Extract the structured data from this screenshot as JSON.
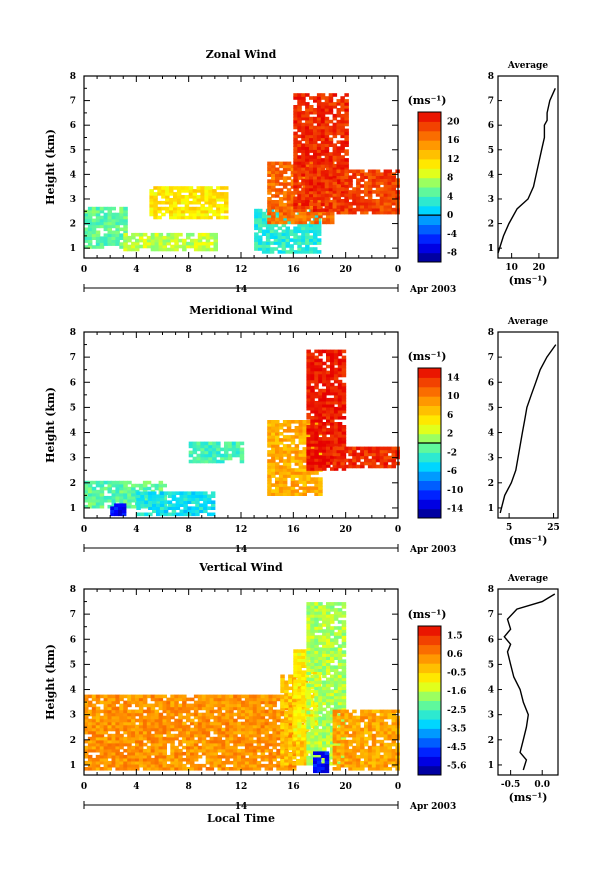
{
  "chart_data": [
    {
      "type": "heatmap",
      "title": "Zonal Wind",
      "ylabel": "Height (km)",
      "xlabel": "",
      "x_ticks": [
        "0",
        "4",
        "8",
        "12",
        "16",
        "20",
        "0"
      ],
      "y_ticks": [
        "1",
        "2",
        "3",
        "4",
        "5",
        "6",
        "7",
        "8"
      ],
      "xlim": [
        0,
        24
      ],
      "ylim": [
        0.6,
        8.0
      ],
      "date_label": "14",
      "month_label": "Apr 2003",
      "colorbar": {
        "unit": "(ms⁻¹)",
        "ticks": [
          "20",
          "16",
          "12",
          "8",
          "4",
          "0",
          "-4",
          "-8"
        ],
        "range": [
          -10,
          22
        ],
        "zero_line": 0
      },
      "regions": [
        {
          "x": [
            0,
            3
          ],
          "y": [
            1.0,
            2.6
          ],
          "value": 5
        },
        {
          "x": [
            3,
            10
          ],
          "y": [
            0.9,
            1.6
          ],
          "value": 8
        },
        {
          "x": [
            5,
            11
          ],
          "y": [
            2.2,
            3.5
          ],
          "value": 11
        },
        {
          "x": [
            13,
            18
          ],
          "y": [
            0.8,
            2.6
          ],
          "value": 3
        },
        {
          "x": [
            14,
            19
          ],
          "y": [
            2.0,
            4.5
          ],
          "value": 17
        },
        {
          "x": [
            16,
            20
          ],
          "y": [
            2.5,
            7.2
          ],
          "value": 20
        },
        {
          "x": [
            19,
            24
          ],
          "y": [
            2.4,
            4.2
          ],
          "value": 19
        }
      ],
      "average_profile": {
        "title": "Average",
        "xlabel": "(ms⁻¹)",
        "x_ticks": [
          "10",
          "20"
        ],
        "xlim": [
          5,
          27
        ],
        "height": [
          0.8,
          1.5,
          2.0,
          2.6,
          3.0,
          3.5,
          4.0,
          4.5,
          5.0,
          5.5,
          6.0,
          6.2,
          6.5,
          7.0,
          7.5
        ],
        "value": [
          5,
          7,
          9,
          12,
          16,
          18,
          19,
          20,
          21,
          22,
          22,
          23,
          23,
          24,
          26
        ]
      }
    },
    {
      "type": "heatmap",
      "title": "Meridional Wind",
      "ylabel": "Height (km)",
      "xlabel": "",
      "x_ticks": [
        "0",
        "4",
        "8",
        "12",
        "16",
        "20",
        "0"
      ],
      "y_ticks": [
        "1",
        "2",
        "3",
        "4",
        "5",
        "6",
        "7",
        "8"
      ],
      "xlim": [
        0,
        24
      ],
      "ylim": [
        0.6,
        8.0
      ],
      "date_label": "14",
      "month_label": "Apr 2003",
      "colorbar": {
        "unit": "(ms⁻¹)",
        "ticks": [
          "14",
          "10",
          "6",
          "2",
          "-2",
          "-6",
          "-10",
          "-14"
        ],
        "range": [
          -16,
          16
        ],
        "zero_line": 0
      },
      "regions": [
        {
          "x": [
            0,
            6
          ],
          "y": [
            1.0,
            2.0
          ],
          "value": -1
        },
        {
          "x": [
            2,
            3
          ],
          "y": [
            0.7,
            1.1
          ],
          "value": -12
        },
        {
          "x": [
            4,
            10
          ],
          "y": [
            0.7,
            1.6
          ],
          "value": -4
        },
        {
          "x": [
            8,
            12
          ],
          "y": [
            2.8,
            3.6
          ],
          "value": -2
        },
        {
          "x": [
            14,
            18
          ],
          "y": [
            1.5,
            4.5
          ],
          "value": 8
        },
        {
          "x": [
            17,
            20
          ],
          "y": [
            2.5,
            7.2
          ],
          "value": 15
        },
        {
          "x": [
            19,
            24
          ],
          "y": [
            2.6,
            3.4
          ],
          "value": 14
        }
      ],
      "average_profile": {
        "title": "Average",
        "xlabel": "(ms⁻¹)",
        "x_ticks": [
          "5",
          "25"
        ],
        "xlim": [
          0,
          27
        ],
        "height": [
          0.8,
          1.5,
          2.0,
          2.5,
          3.0,
          3.5,
          4.0,
          4.5,
          5.0,
          5.5,
          6.0,
          6.5,
          7.0,
          7.5
        ],
        "value": [
          1,
          3,
          6,
          8,
          9,
          10,
          11,
          12,
          13,
          15,
          17,
          19,
          22,
          26
        ]
      }
    },
    {
      "type": "heatmap",
      "title": "Vertical Wind",
      "ylabel": "Height (km)",
      "xlabel": "Local Time",
      "x_ticks": [
        "0",
        "4",
        "8",
        "12",
        "16",
        "20",
        "0"
      ],
      "y_ticks": [
        "1",
        "2",
        "3",
        "4",
        "5",
        "6",
        "7",
        "8"
      ],
      "xlim": [
        0,
        24
      ],
      "ylim": [
        0.6,
        8.0
      ],
      "date_label": "14",
      "month_label": "Apr 2003",
      "colorbar": {
        "unit": "(ms⁻¹)",
        "ticks": [
          "1.5",
          "0.6",
          "-0.5",
          "-1.6",
          "-2.5",
          "-3.5",
          "-4.5",
          "-5.6"
        ],
        "range": [
          -6,
          2
        ],
        "zero_line": null
      },
      "regions": [
        {
          "x": [
            0,
            16
          ],
          "y": [
            0.8,
            3.8
          ],
          "value": 0.3
        },
        {
          "x": [
            15,
            17
          ],
          "y": [
            1.0,
            4.5
          ],
          "value": -0.3
        },
        {
          "x": [
            16,
            18
          ],
          "y": [
            2.0,
            5.5
          ],
          "value": -0.9
        },
        {
          "x": [
            17,
            20
          ],
          "y": [
            1.0,
            7.4
          ],
          "value": -1.6
        },
        {
          "x": [
            19,
            24
          ],
          "y": [
            0.8,
            3.2
          ],
          "value": 0.1
        },
        {
          "x": [
            17.5,
            18.5
          ],
          "y": [
            0.7,
            1.5
          ],
          "value": -5.0
        }
      ],
      "average_profile": {
        "title": "Average",
        "xlabel": "(ms⁻¹)",
        "x_ticks": [
          "-0.5",
          "0.0"
        ],
        "xlim": [
          -0.7,
          0.25
        ],
        "height": [
          0.8,
          1.2,
          1.5,
          2.0,
          2.5,
          3.0,
          3.5,
          4.0,
          4.5,
          5.0,
          5.5,
          5.8,
          6.1,
          6.4,
          6.8,
          7.2,
          7.5,
          7.8
        ],
        "value": [
          -0.3,
          -0.25,
          -0.35,
          -0.3,
          -0.25,
          -0.22,
          -0.3,
          -0.35,
          -0.45,
          -0.5,
          -0.55,
          -0.5,
          -0.6,
          -0.5,
          -0.55,
          -0.4,
          0.0,
          0.2
        ]
      }
    }
  ]
}
